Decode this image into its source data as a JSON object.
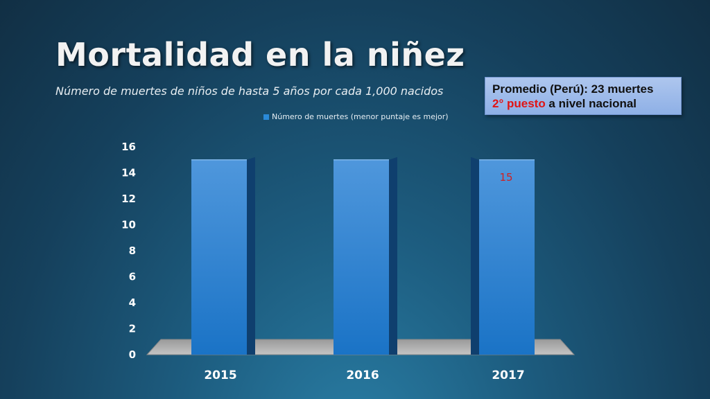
{
  "header": {
    "title": "Mortalidad en la niñez",
    "subtitle": "Número de muertes de niños de hasta 5 años por cada 1,000 nacidos"
  },
  "callout": {
    "line1": "Promedio (Perú): 23 muertes",
    "line2_highlight": "2° puesto",
    "line2_rest": " a nivel nacional"
  },
  "chart_data": {
    "type": "bar",
    "categories": [
      "2015",
      "2016",
      "2017"
    ],
    "series": [
      {
        "name": "Número de muertes (menor puntaje es mejor)",
        "values": [
          15,
          15,
          15
        ]
      }
    ],
    "data_labels": [
      "",
      "",
      "15"
    ],
    "yticks": [
      "0",
      "2",
      "4",
      "6",
      "8",
      "10",
      "12",
      "14",
      "16"
    ],
    "ylim": [
      0,
      16
    ],
    "legend_position": "top",
    "colors": {
      "bar": "#1f7fd0",
      "data_label": "#d02020"
    }
  }
}
